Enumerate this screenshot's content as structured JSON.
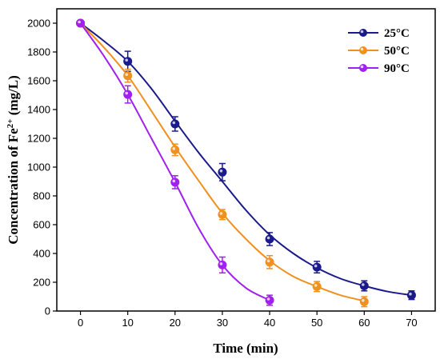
{
  "chart_data": {
    "type": "line",
    "title": "",
    "xlabel": "Time (min)",
    "ylabel": "Concentration of Fe",
    "ylabel_sup": "2+",
    "ylabel_unit": " (mg/L)",
    "xlim": [
      -5,
      75
    ],
    "ylim": [
      0,
      2100
    ],
    "xticks": [
      0,
      10,
      20,
      30,
      40,
      50,
      60,
      70
    ],
    "yticks": [
      0,
      200,
      400,
      600,
      800,
      1000,
      1200,
      1400,
      1600,
      1800,
      2000
    ],
    "legend_position": "top-right",
    "grid": false,
    "series": [
      {
        "name": "25°C",
        "color": "#1a1a8c",
        "x": [
          0,
          10,
          20,
          30,
          40,
          50,
          60,
          70
        ],
        "y": [
          2000,
          1735,
          1300,
          965,
          500,
          305,
          175,
          110
        ],
        "err": [
          15,
          70,
          50,
          60,
          45,
          40,
          35,
          30
        ],
        "fit": [
          [
            0,
            2000
          ],
          [
            5,
            1875
          ],
          [
            10,
            1735
          ],
          [
            15,
            1545
          ],
          [
            20,
            1320
          ],
          [
            25,
            1100
          ],
          [
            30,
            900
          ],
          [
            35,
            700
          ],
          [
            40,
            530
          ],
          [
            45,
            400
          ],
          [
            50,
            300
          ],
          [
            55,
            225
          ],
          [
            60,
            175
          ],
          [
            65,
            135
          ],
          [
            70,
            110
          ]
        ]
      },
      {
        "name": "50°C",
        "color": "#f0901e",
        "x": [
          0,
          10,
          20,
          30,
          40,
          50,
          60
        ],
        "y": [
          2000,
          1635,
          1120,
          670,
          340,
          170,
          65
        ],
        "err": [
          15,
          45,
          40,
          35,
          45,
          35,
          35
        ],
        "fit": [
          [
            0,
            2000
          ],
          [
            5,
            1830
          ],
          [
            10,
            1635
          ],
          [
            15,
            1390
          ],
          [
            20,
            1140
          ],
          [
            25,
            905
          ],
          [
            30,
            680
          ],
          [
            35,
            500
          ],
          [
            40,
            350
          ],
          [
            45,
            240
          ],
          [
            50,
            170
          ],
          [
            55,
            110
          ],
          [
            60,
            70
          ]
        ]
      },
      {
        "name": "90°C",
        "color": "#a020f0",
        "x": [
          0,
          10,
          20,
          30,
          40
        ],
        "y": [
          2000,
          1505,
          895,
          320,
          75
        ],
        "err": [
          15,
          60,
          45,
          55,
          35
        ],
        "fit": [
          [
            0,
            2000
          ],
          [
            5,
            1770
          ],
          [
            10,
            1505
          ],
          [
            15,
            1200
          ],
          [
            20,
            895
          ],
          [
            25,
            575
          ],
          [
            30,
            320
          ],
          [
            35,
            160
          ],
          [
            40,
            75
          ]
        ]
      }
    ]
  }
}
